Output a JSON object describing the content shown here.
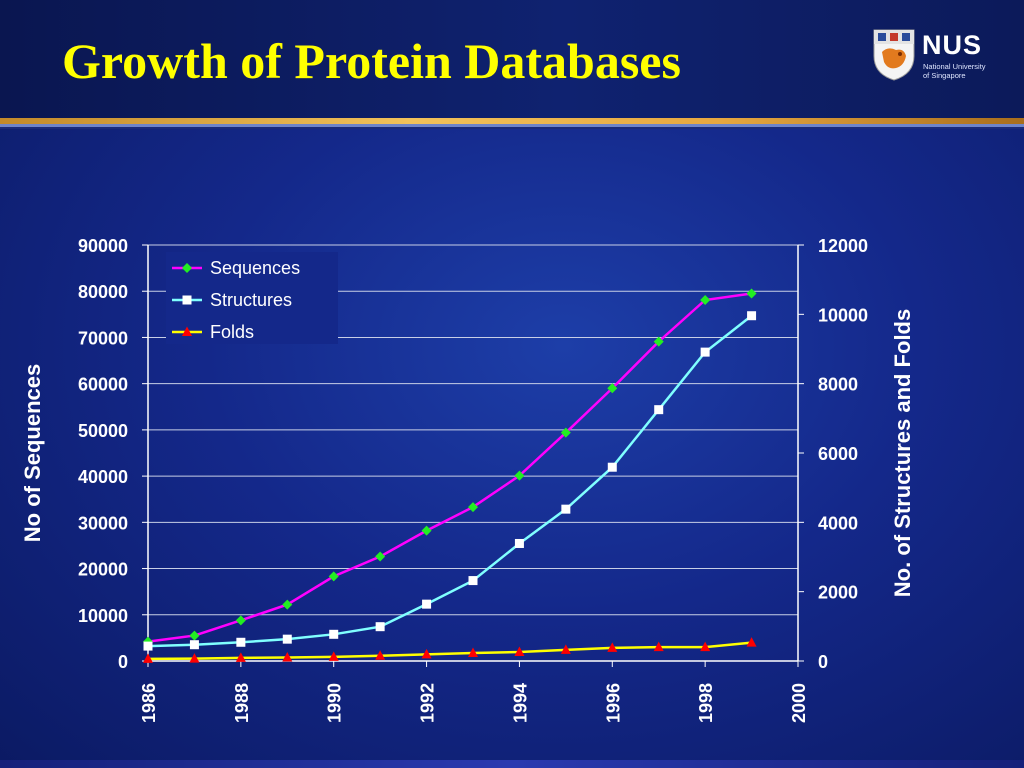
{
  "slide": {
    "title": "Growth of Protein Databases",
    "logo": {
      "name": "NUS",
      "subtitle_line1": "National University",
      "subtitle_line2": "of Singapore"
    }
  },
  "colors": {
    "title": "#ffff00",
    "background": "#14288a",
    "sequences": "#ff00ff",
    "sequences_marker": "#22ee22",
    "structures": "#80ffff",
    "structures_marker": "#ffffff",
    "folds": "#ffff00",
    "folds_marker": "#ff0000"
  },
  "chart_data": {
    "type": "line",
    "x": [
      1986,
      1987,
      1988,
      1989,
      1990,
      1991,
      1992,
      1993,
      1994,
      1995,
      1996,
      1997,
      1998,
      1999
    ],
    "xlim": [
      1986,
      2000
    ],
    "x_tick_labels": [
      "1986",
      "1988",
      "1990",
      "1992",
      "1994",
      "1996",
      "1998",
      "2000"
    ],
    "xlabel": "",
    "ylabel_left": "No of Sequences",
    "ylim_left": [
      0,
      90000
    ],
    "y_tick_labels_left": [
      "0",
      "10000",
      "20000",
      "30000",
      "40000",
      "50000",
      "60000",
      "70000",
      "80000",
      "90000"
    ],
    "ylabel_right": "No. of Structures and Folds",
    "ylim_right": [
      0,
      12000
    ],
    "y_tick_labels_right": [
      "0",
      "2000",
      "4000",
      "6000",
      "8000",
      "10000",
      "12000"
    ],
    "grid": "horizontal",
    "legend_position": "top-left",
    "series": [
      {
        "name": "Sequences",
        "axis": "left",
        "marker": "diamond",
        "values": [
          4200,
          5500,
          8800,
          12200,
          18300,
          22600,
          28200,
          33300,
          40100,
          49400,
          59000,
          69100,
          78100,
          79500
        ]
      },
      {
        "name": "Structures",
        "axis": "right",
        "marker": "square",
        "values": [
          430,
          470,
          540,
          630,
          770,
          990,
          1640,
          2320,
          3390,
          4380,
          5590,
          7250,
          8910,
          9960
        ]
      },
      {
        "name": "Folds",
        "axis": "right",
        "marker": "triangle",
        "values": [
          60,
          70,
          90,
          100,
          120,
          150,
          190,
          230,
          260,
          320,
          380,
          400,
          400,
          530
        ]
      }
    ]
  }
}
